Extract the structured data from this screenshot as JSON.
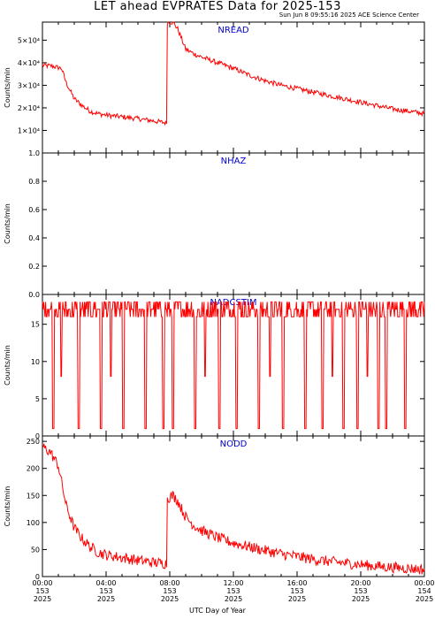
{
  "title": "LET ahead EVPRATES Data for 2025-153",
  "subtitle": "Sun Jun  8 09:55:16 2025 ACE Science Center",
  "x_axis_title": "UTC Day of Year",
  "colors": {
    "data": "#ff0000",
    "panel_label": "#0000cc",
    "axes": "#000000"
  },
  "chart_data": [
    {
      "type": "line",
      "title": "NREAD",
      "ylabel": "Counts/min",
      "ylim": [
        0,
        58000
      ],
      "yticks": [
        10000,
        20000,
        30000,
        40000,
        50000
      ],
      "ytick_labels": [
        "1×10⁴",
        "2×10⁴",
        "3×10⁴",
        "4×10⁴",
        "5×10⁴"
      ],
      "xlim": [
        0,
        24
      ],
      "points": [
        [
          0,
          38800
        ],
        [
          0.6,
          38500
        ],
        [
          1.2,
          37500
        ],
        [
          1.5,
          31000
        ],
        [
          2,
          24000
        ],
        [
          2.5,
          21000
        ],
        [
          3,
          18500
        ],
        [
          3.5,
          17400
        ],
        [
          4,
          16800
        ],
        [
          5,
          16000
        ],
        [
          6,
          15200
        ],
        [
          7,
          14200
        ],
        [
          7.8,
          13300
        ],
        [
          7.85,
          58000
        ],
        [
          8.2,
          58000
        ],
        [
          8.5,
          55000
        ],
        [
          9,
          46000
        ],
        [
          9.5,
          44000
        ],
        [
          10,
          42500
        ],
        [
          11,
          40000
        ],
        [
          12,
          37500
        ],
        [
          13,
          34500
        ],
        [
          14,
          32000
        ],
        [
          15,
          30000
        ],
        [
          16,
          28500
        ],
        [
          17,
          27000
        ],
        [
          18,
          25500
        ],
        [
          19,
          24000
        ],
        [
          20,
          22500
        ],
        [
          21,
          21000
        ],
        [
          22,
          19500
        ],
        [
          23,
          18500
        ],
        [
          24,
          17500
        ]
      ],
      "noise": 1100
    },
    {
      "type": "line",
      "title": "NHAZ",
      "ylabel": "Counts/min",
      "ylim": [
        0,
        1.0
      ],
      "yticks": [
        0.0,
        0.2,
        0.4,
        0.6,
        0.8,
        1.0
      ],
      "ytick_labels": [
        "0.0",
        "0.2",
        "0.4",
        "0.6",
        "0.8",
        "1.0"
      ],
      "xlim": [
        0,
        24
      ],
      "points": [
        [
          0,
          0
        ],
        [
          24,
          0
        ]
      ],
      "noise": 0
    },
    {
      "type": "line",
      "title": "NADCSTIM",
      "ylabel": "Counts/min",
      "ylim": [
        0,
        19
      ],
      "yticks": [
        0,
        5,
        10,
        15
      ],
      "ytick_labels": [
        "0",
        "5",
        "10",
        "15"
      ],
      "xlim": [
        0,
        24
      ],
      "baseline_values": [
        16,
        17,
        18
      ],
      "drops_to_near_zero_at_hours": [
        0.7,
        2.3,
        3.7,
        5.1,
        6.5,
        7.6,
        8.2,
        9.6,
        11.1,
        12.2,
        13.6,
        15.1,
        16.5,
        17.6,
        18.9,
        19.8,
        21.1,
        21.6,
        22.8
      ],
      "short_drops_at_hours": [
        1.2,
        4.3,
        10.2,
        14.3,
        18.2,
        20.4
      ]
    },
    {
      "type": "line",
      "title": "NODD",
      "ylabel": "Counts/min",
      "ylim": [
        0,
        260
      ],
      "yticks": [
        0,
        50,
        100,
        150,
        200,
        250
      ],
      "ytick_labels": [
        "0",
        "50",
        "100",
        "150",
        "200",
        "250"
      ],
      "xlim": [
        0,
        24
      ],
      "points": [
        [
          0,
          240
        ],
        [
          0.5,
          230
        ],
        [
          1,
          205
        ],
        [
          1.5,
          130
        ],
        [
          2,
          90
        ],
        [
          2.5,
          70
        ],
        [
          3,
          55
        ],
        [
          3.5,
          45
        ],
        [
          4,
          40
        ],
        [
          5,
          35
        ],
        [
          6,
          30
        ],
        [
          7,
          26
        ],
        [
          7.8,
          24
        ],
        [
          7.85,
          145
        ],
        [
          8.2,
          150
        ],
        [
          8.5,
          140
        ],
        [
          9,
          110
        ],
        [
          9.5,
          95
        ],
        [
          10,
          85
        ],
        [
          11,
          72
        ],
        [
          12,
          62
        ],
        [
          13,
          55
        ],
        [
          14,
          48
        ],
        [
          15,
          42
        ],
        [
          16,
          37
        ],
        [
          17,
          32
        ],
        [
          18,
          28
        ],
        [
          19,
          25
        ],
        [
          20,
          22
        ],
        [
          21,
          19
        ],
        [
          22,
          17
        ],
        [
          23,
          15
        ],
        [
          24,
          13
        ]
      ],
      "noise": 10
    }
  ],
  "x_ticks": [
    {
      "time": "00:00",
      "doy": "153",
      "year": "2025",
      "hour": 0
    },
    {
      "time": "04:00",
      "doy": "153",
      "year": "2025",
      "hour": 4
    },
    {
      "time": "08:00",
      "doy": "153",
      "year": "2025",
      "hour": 8
    },
    {
      "time": "12:00",
      "doy": "153",
      "year": "2025",
      "hour": 12
    },
    {
      "time": "16:00",
      "doy": "153",
      "year": "2025",
      "hour": 16
    },
    {
      "time": "20:00",
      "doy": "153",
      "year": "2025",
      "hour": 20
    },
    {
      "time": "00:00",
      "doy": "154",
      "year": "2025",
      "hour": 24
    }
  ]
}
